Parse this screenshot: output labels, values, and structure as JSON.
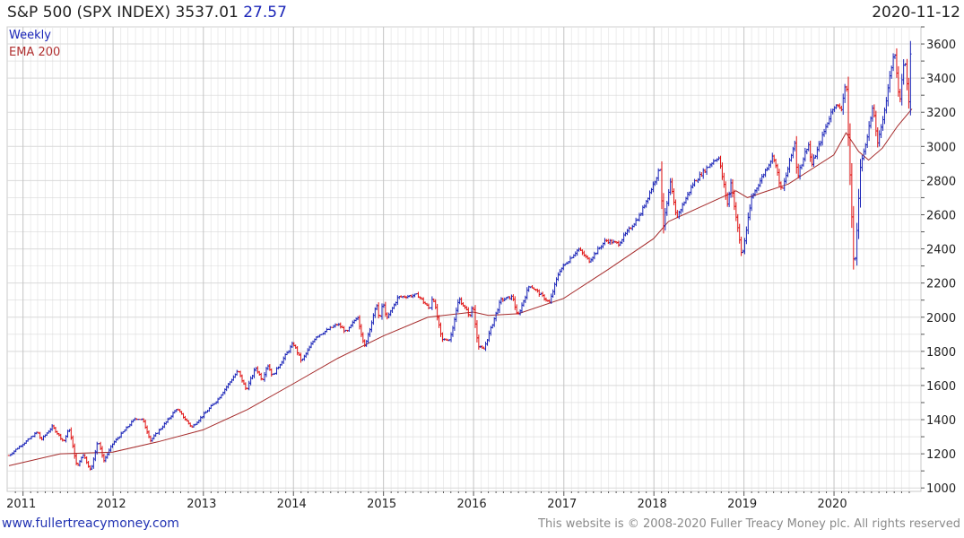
{
  "header": {
    "title": "S&P 500 (SPX INDEX) 3537.01",
    "change": "27.57",
    "date": "2020-11-12"
  },
  "footer": {
    "site": "www.fullertreacymoney.com",
    "copyright": "This website is © 2008-2020 Fuller Treacy Money plc. All rights reserved"
  },
  "colors": {
    "up": "#1a24b8",
    "down": "#e01010",
    "ema": "#a52a2a",
    "grid": "#d9d9d9"
  },
  "chart_data": {
    "type": "line",
    "legend": [
      "Weekly",
      "EMA 200"
    ],
    "legend_placement": "top-left",
    "grid": true,
    "x_tick_labels": [
      "2011",
      "2012",
      "2013",
      "2014",
      "2015",
      "2016",
      "2017",
      "2018",
      "2019",
      "2020"
    ],
    "y_tick_labels": [
      "1000",
      "1200",
      "1400",
      "1600",
      "1800",
      "2000",
      "2200",
      "2400",
      "2600",
      "2800",
      "3000",
      "3200",
      "3400",
      "3600"
    ],
    "x_range": [
      "2010-11-05",
      "2020-11-12"
    ],
    "ylim": [
      980,
      3700
    ],
    "price_series": {
      "name": "Weekly",
      "points": [
        [
          "2010-11-05",
          1190
        ],
        [
          "2010-12-15",
          1240
        ],
        [
          "2011-01-25",
          1285
        ],
        [
          "2011-03-01",
          1330
        ],
        [
          "2011-03-15",
          1280
        ],
        [
          "2011-04-30",
          1360
        ],
        [
          "2011-06-15",
          1270
        ],
        [
          "2011-07-07",
          1350
        ],
        [
          "2011-08-08",
          1120
        ],
        [
          "2011-09-01",
          1200
        ],
        [
          "2011-10-03",
          1099
        ],
        [
          "2011-10-31",
          1280
        ],
        [
          "2011-11-25",
          1160
        ],
        [
          "2011-12-31",
          1260
        ],
        [
          "2012-03-31",
          1408
        ],
        [
          "2012-04-30",
          1400
        ],
        [
          "2012-06-01",
          1278
        ],
        [
          "2012-07-31",
          1380
        ],
        [
          "2012-09-15",
          1465
        ],
        [
          "2012-11-15",
          1355
        ],
        [
          "2012-12-31",
          1426
        ],
        [
          "2013-03-01",
          1520
        ],
        [
          "2013-05-21",
          1687
        ],
        [
          "2013-06-24",
          1573
        ],
        [
          "2013-08-01",
          1706
        ],
        [
          "2013-08-28",
          1630
        ],
        [
          "2013-09-18",
          1725
        ],
        [
          "2013-10-08",
          1655
        ],
        [
          "2013-12-31",
          1848
        ],
        [
          "2014-02-03",
          1741
        ],
        [
          "2014-04-01",
          1885
        ],
        [
          "2014-06-30",
          1960
        ],
        [
          "2014-08-05",
          1910
        ],
        [
          "2014-09-18",
          2010
        ],
        [
          "2014-10-15",
          1820
        ],
        [
          "2014-12-05",
          2075
        ],
        [
          "2014-12-16",
          1972
        ],
        [
          "2014-12-29",
          2090
        ],
        [
          "2015-01-15",
          1990
        ],
        [
          "2015-03-01",
          2117
        ],
        [
          "2015-05-20",
          2130
        ],
        [
          "2015-07-08",
          2045
        ],
        [
          "2015-07-20",
          2130
        ],
        [
          "2015-08-25",
          1867
        ],
        [
          "2015-09-28",
          1871
        ],
        [
          "2015-11-03",
          2110
        ],
        [
          "2015-12-18",
          2005
        ],
        [
          "2015-12-29",
          2080
        ],
        [
          "2016-01-20",
          1829
        ],
        [
          "2016-02-11",
          1810
        ],
        [
          "2016-04-20",
          2100
        ],
        [
          "2016-06-08",
          2120
        ],
        [
          "2016-06-27",
          2000
        ],
        [
          "2016-08-15",
          2190
        ],
        [
          "2016-11-04",
          2085
        ],
        [
          "2016-12-13",
          2270
        ],
        [
          "2017-03-01",
          2400
        ],
        [
          "2017-04-13",
          2330
        ],
        [
          "2017-06-19",
          2450
        ],
        [
          "2017-08-10",
          2430
        ],
        [
          "2017-11-07",
          2600
        ],
        [
          "2018-01-26",
          2872
        ],
        [
          "2018-02-08",
          2532
        ],
        [
          "2018-03-09",
          2786
        ],
        [
          "2018-04-02",
          2581
        ],
        [
          "2018-06-12",
          2790
        ],
        [
          "2018-08-29",
          2914
        ],
        [
          "2018-09-20",
          2940
        ],
        [
          "2018-10-29",
          2640
        ],
        [
          "2018-11-07",
          2814
        ],
        [
          "2018-12-24",
          2351
        ],
        [
          "2019-02-01",
          2700
        ],
        [
          "2019-04-30",
          2950
        ],
        [
          "2019-06-03",
          2730
        ],
        [
          "2019-07-26",
          3025
        ],
        [
          "2019-08-05",
          2822
        ],
        [
          "2019-09-19",
          3020
        ],
        [
          "2019-10-02",
          2887
        ],
        [
          "2019-12-31",
          3240
        ],
        [
          "2020-01-31",
          3225
        ],
        [
          "2020-02-19",
          3393
        ],
        [
          "2020-03-23",
          2237
        ],
        [
          "2020-04-17",
          2875
        ],
        [
          "2020-06-08",
          3232
        ],
        [
          "2020-06-26",
          3010
        ],
        [
          "2020-07-31",
          3270
        ],
        [
          "2020-09-02",
          3580
        ],
        [
          "2020-09-23",
          3236
        ],
        [
          "2020-10-12",
          3534
        ],
        [
          "2020-10-30",
          3269
        ],
        [
          "2020-11-09",
          3645
        ],
        [
          "2020-11-12",
          3537
        ]
      ]
    },
    "ema_series": {
      "name": "EMA 200",
      "points": [
        [
          "2010-11-05",
          1130
        ],
        [
          "2011-06-01",
          1200
        ],
        [
          "2011-12-31",
          1210
        ],
        [
          "2012-06-30",
          1270
        ],
        [
          "2012-12-31",
          1340
        ],
        [
          "2013-06-30",
          1460
        ],
        [
          "2013-12-31",
          1610
        ],
        [
          "2014-06-30",
          1760
        ],
        [
          "2014-12-31",
          1890
        ],
        [
          "2015-06-30",
          2000
        ],
        [
          "2015-12-31",
          2030
        ],
        [
          "2016-03-01",
          2010
        ],
        [
          "2016-06-30",
          2020
        ],
        [
          "2016-12-31",
          2110
        ],
        [
          "2017-06-30",
          2280
        ],
        [
          "2017-12-31",
          2460
        ],
        [
          "2018-03-01",
          2560
        ],
        [
          "2018-06-30",
          2640
        ],
        [
          "2018-11-30",
          2740
        ],
        [
          "2019-01-15",
          2700
        ],
        [
          "2019-06-30",
          2780
        ],
        [
          "2019-12-31",
          2950
        ],
        [
          "2020-02-19",
          3080
        ],
        [
          "2020-04-10",
          2970
        ],
        [
          "2020-05-20",
          2920
        ],
        [
          "2020-07-15",
          2990
        ],
        [
          "2020-09-15",
          3120
        ],
        [
          "2020-11-12",
          3220
        ]
      ]
    }
  }
}
